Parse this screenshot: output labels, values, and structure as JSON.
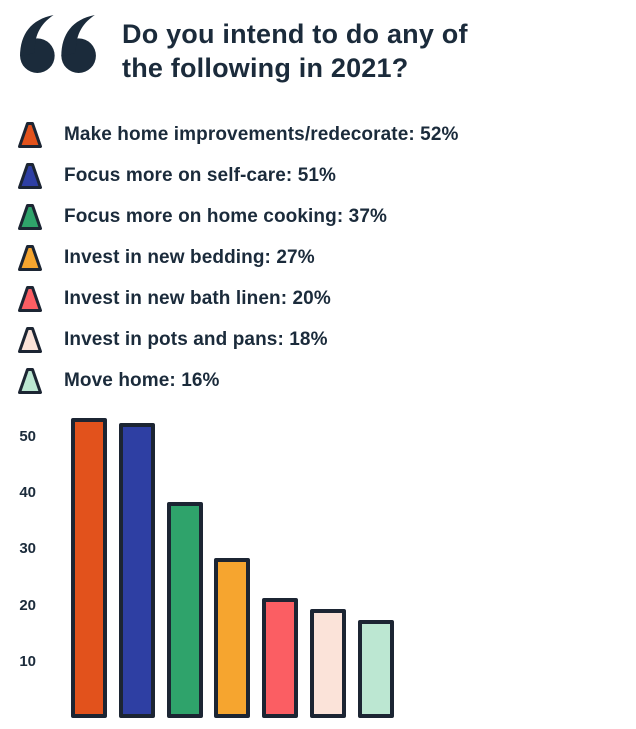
{
  "title": "Do you intend to do any of\nthe following in 2021?",
  "icons": {
    "quote": "double-quote-marks"
  },
  "colors": {
    "text": "#1b2b3b",
    "outline": "#1c2533",
    "background": "#ffffff"
  },
  "chart_data": {
    "type": "bar",
    "title": "Do you intend to do any of the following in 2021?",
    "categories": [
      "Make home improvements/redecorate",
      "Focus more on self-care",
      "Focus more on home cooking",
      "Invest in new bedding",
      "Invest in new bath linen",
      "Invest in pots and pans",
      "Move home"
    ],
    "values": [
      52,
      51,
      37,
      27,
      20,
      18,
      16
    ],
    "bar_colors": [
      "#e2521c",
      "#2e3fa3",
      "#2fa36b",
      "#f6a52f",
      "#fb5e63",
      "#fbe3d9",
      "#bce7d2"
    ],
    "legend_format": "{label}: {value}%",
    "xlabel": "",
    "ylabel": "",
    "ylim": [
      0,
      55
    ],
    "yticks": [
      10,
      20,
      30,
      40,
      50
    ],
    "grid": false,
    "legend_position": "top-left",
    "marker_shape": "triangle"
  }
}
